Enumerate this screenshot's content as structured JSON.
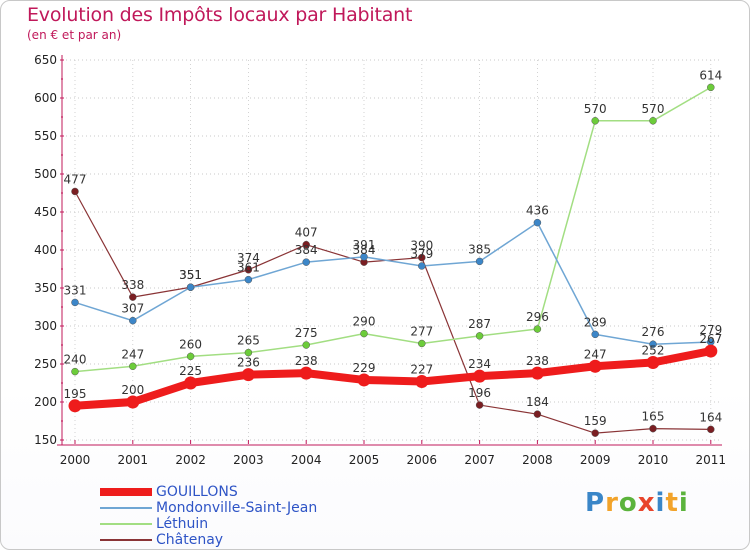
{
  "title": "Evolution des Impôts locaux par Habitant",
  "subtitle": "(en € et par an)",
  "logo": {
    "letters": [
      "P",
      "r",
      "o",
      "x",
      "i",
      "t",
      "i"
    ],
    "colors": [
      "#3a86c8",
      "#f2a32a",
      "#5bb33c",
      "#e8452c",
      "#3a86c8",
      "#f2a32a",
      "#5bb33c"
    ]
  },
  "chart_data": {
    "type": "line",
    "title": "Evolution des Impôts locaux par Habitant",
    "subtitle": "(en € et par an)",
    "xlabel": "",
    "ylabel": "",
    "ylim": [
      150,
      650
    ],
    "yticks": [
      150,
      200,
      250,
      300,
      350,
      400,
      450,
      500,
      550,
      600,
      650
    ],
    "categories": [
      "2000",
      "2001",
      "2002",
      "2003",
      "2004",
      "2005",
      "2006",
      "2007",
      "2008",
      "2009",
      "2010",
      "2011"
    ],
    "legend_position": "bottom-left",
    "series": [
      {
        "name": "Châtenay",
        "color": "#7a1e22",
        "lineColor": "#8a3436",
        "width": 1.2,
        "marker": 3.5,
        "values": [
          477,
          338,
          351,
          374,
          407,
          384,
          390,
          196,
          184,
          159,
          165,
          164
        ],
        "labels": [
          "477",
          "338",
          "351",
          "374",
          "407",
          "",
          "390",
          "196",
          "184",
          "159",
          "165",
          "164"
        ]
      },
      {
        "name": "Léthuin",
        "color": "#6ccc3a",
        "lineColor": "#a2de82",
        "width": 1.5,
        "marker": 3.5,
        "values": [
          240,
          247,
          260,
          265,
          275,
          290,
          277,
          287,
          296,
          570,
          570,
          614
        ],
        "labels": [
          "240",
          "247",
          "260",
          "265",
          "275",
          "290",
          "277",
          "287",
          "296",
          "570",
          "570",
          "614"
        ]
      },
      {
        "name": "Mondonville-Saint-Jean",
        "color": "#3c86c8",
        "lineColor": "#6fa6d4",
        "width": 1.5,
        "marker": 3.5,
        "values": [
          331,
          307,
          351,
          361,
          384,
          391,
          379,
          385,
          436,
          289,
          276,
          279
        ],
        "labels": [
          "331",
          "307",
          "351",
          "361",
          "384",
          "391",
          "379",
          "385",
          "436",
          "289",
          "276",
          "279"
        ]
      },
      {
        "name": "GOUILLONS",
        "color": "#ee1c1c",
        "lineColor": "#ee1c1c",
        "width": 8,
        "marker": 6.5,
        "values": [
          195,
          200,
          225,
          236,
          238,
          229,
          227,
          234,
          238,
          247,
          252,
          267
        ],
        "labels": [
          "195",
          "200",
          "225",
          "236",
          "238",
          "229",
          "227",
          "234",
          "238",
          "247",
          "252",
          "267"
        ]
      }
    ],
    "extra_labels": [
      {
        "text": "384",
        "x": "2005",
        "y": 384
      }
    ]
  },
  "legend": [
    {
      "name": "GOUILLONS",
      "color": "#ee1c1c",
      "thickness": 8
    },
    {
      "name": "Mondonville-Saint-Jean",
      "color": "#6fa6d4",
      "thickness": 2
    },
    {
      "name": "Léthuin",
      "color": "#a2de82",
      "thickness": 2
    },
    {
      "name": "Châtenay",
      "color": "#8a3436",
      "thickness": 2
    }
  ],
  "legend_text_color": "#2e54c6"
}
